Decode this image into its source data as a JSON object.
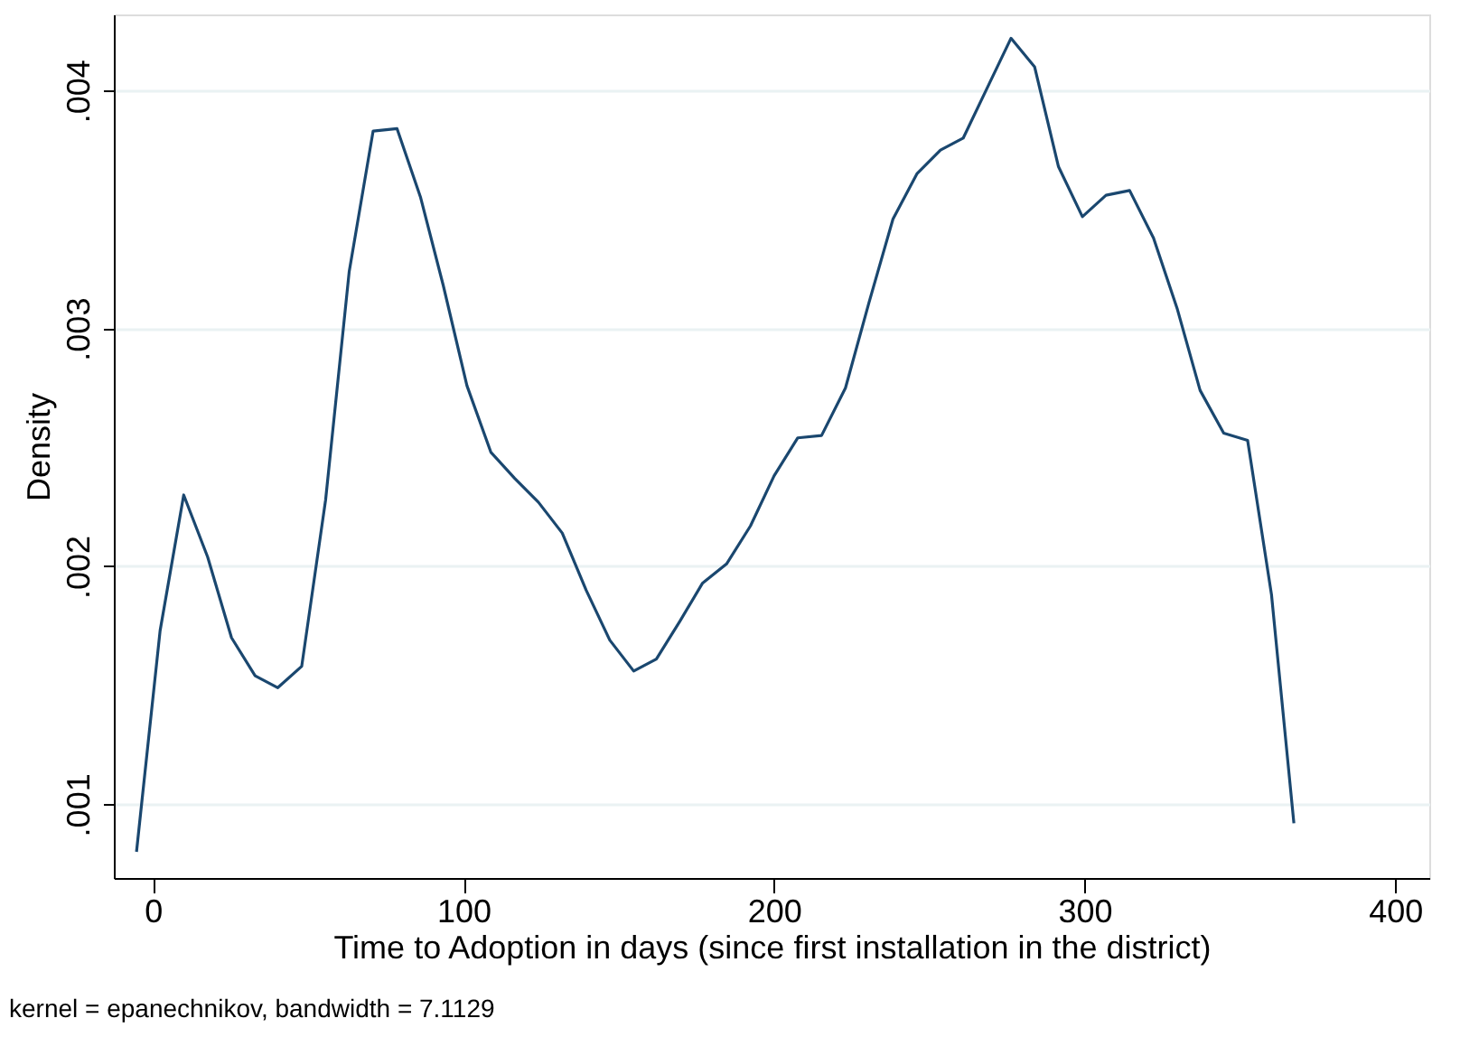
{
  "chart_data": {
    "type": "line",
    "xlabel": "Time to Adoption in days (since first installation in the district)",
    "ylabel": "Density",
    "annotations": [
      "kernel = epanechnikov, bandwidth = 7.1129"
    ],
    "x": [
      -5.3,
      2.3,
      9.9,
      17.6,
      25.3,
      32.9,
      40.2,
      47.9,
      55.6,
      63.2,
      70.9,
      78.6,
      86.2,
      93.5,
      101.1,
      108.8,
      116.5,
      124.1,
      131.8,
      139.5,
      147.1,
      154.8,
      162.1,
      169.7,
      177.0,
      184.7,
      192.4,
      200.0,
      207.6,
      215.3,
      223.0,
      230.6,
      238.3,
      246.0,
      253.6,
      260.9,
      268.6,
      276.3,
      283.9,
      291.6,
      299.3,
      306.9,
      314.5,
      322.2,
      329.9,
      337.2,
      344.8,
      352.5,
      360.2,
      367.4
    ],
    "series": [
      {
        "color": "#1a476f",
        "values": [
          0.0008,
          0.00173,
          0.0023,
          0.00204,
          0.0017,
          0.00154,
          0.00149,
          0.00158,
          0.00228,
          0.00324,
          0.00383,
          0.00384,
          0.00355,
          0.00318,
          0.00276,
          0.00248,
          0.00237,
          0.00227,
          0.00214,
          0.0019,
          0.00169,
          0.00156,
          0.00161,
          0.00177,
          0.00193,
          0.00201,
          0.00217,
          0.00238,
          0.00254,
          0.00255,
          0.00275,
          0.00311,
          0.00346,
          0.00365,
          0.00375,
          0.0038,
          0.00401,
          0.00422,
          0.0041,
          0.00368,
          0.00347,
          0.00356,
          0.00358,
          0.00338,
          0.00308,
          0.00274,
          0.00256,
          0.00253,
          0.00188,
          0.00092
        ]
      }
    ],
    "xlim": [
      -12.6,
      411
    ],
    "xticks": [
      0,
      100,
      200,
      300,
      400
    ],
    "ylim": [
      0.00069,
      0.00432
    ],
    "yticks": [
      {
        "value": 0.001,
        "label": ".001"
      },
      {
        "value": 0.002,
        "label": ".002"
      },
      {
        "value": 0.003,
        "label": ".003"
      },
      {
        "value": 0.004,
        "label": ".004"
      }
    ],
    "grid": "y",
    "legend": false,
    "marker": "none",
    "line_style": "solid"
  }
}
